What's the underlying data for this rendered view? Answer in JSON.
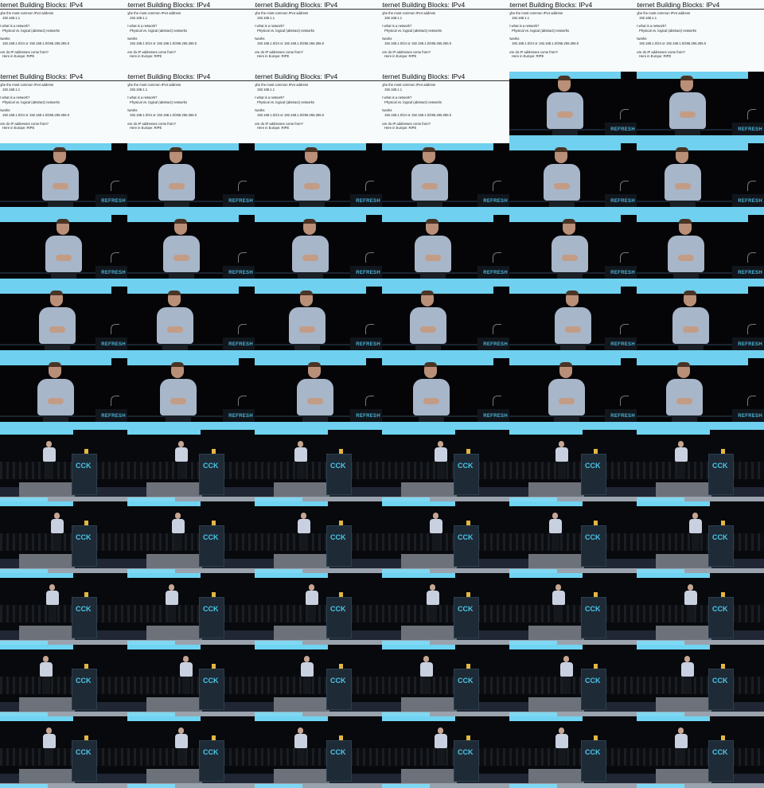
{
  "slide": {
    "title": "nternet Building Blocks: IPv4",
    "lines": [
      {
        "text": "aybe the most common IPv4 address",
        "indent": false
      },
      {
        "text": "192.168.1.1",
        "indent": true
      },
      {
        "text": "",
        "indent": false
      },
      {
        "text": "ut what is a network?",
        "indent": false
      },
      {
        "text": "Physical vs. logical (abstract) networks",
        "indent": true
      },
      {
        "text": "",
        "indent": false
      },
      {
        "text": "etworks",
        "indent": false
      },
      {
        "text": "192.168.1.0/24 or 192.168.1.0/255.255.255.0",
        "indent": true
      },
      {
        "text": "",
        "indent": false
      },
      {
        "text": "here do IP addresses come from?",
        "indent": false
      },
      {
        "text": "Here in Europe: RIPE",
        "indent": true
      }
    ]
  },
  "stage_brand": "REFRESH",
  "stage_logo": "CCK",
  "grid": {
    "columns": 6,
    "rows": 11
  },
  "layout_rows": [
    [
      "slide",
      "slide",
      "slide",
      "slide",
      "slide",
      "slide"
    ],
    [
      "slide",
      "slide",
      "slide",
      "slide",
      "close",
      "close"
    ],
    [
      "close",
      "close",
      "close",
      "close",
      "close",
      "close"
    ],
    [
      "close",
      "close",
      "close",
      "close",
      "close",
      "close"
    ],
    [
      "close",
      "close",
      "close",
      "close",
      "close",
      "close"
    ],
    [
      "close",
      "close",
      "close",
      "close",
      "close",
      "close"
    ],
    [
      "wide",
      "wide",
      "wide",
      "wide",
      "wide",
      "wide"
    ],
    [
      "wide",
      "wide",
      "wide",
      "wide",
      "wide",
      "wide"
    ],
    [
      "wide",
      "wide",
      "wide",
      "wide",
      "wide",
      "wide"
    ],
    [
      "wide",
      "wide",
      "wide",
      "wide",
      "wide",
      "wide"
    ],
    [
      "wide",
      "wide",
      "wide",
      "wide",
      "wide",
      "wide"
    ]
  ],
  "colors": {
    "slide_bg": "#f7fbfc",
    "stage_accent": "#6fd0ef",
    "shirt": "#a7b6c9"
  }
}
